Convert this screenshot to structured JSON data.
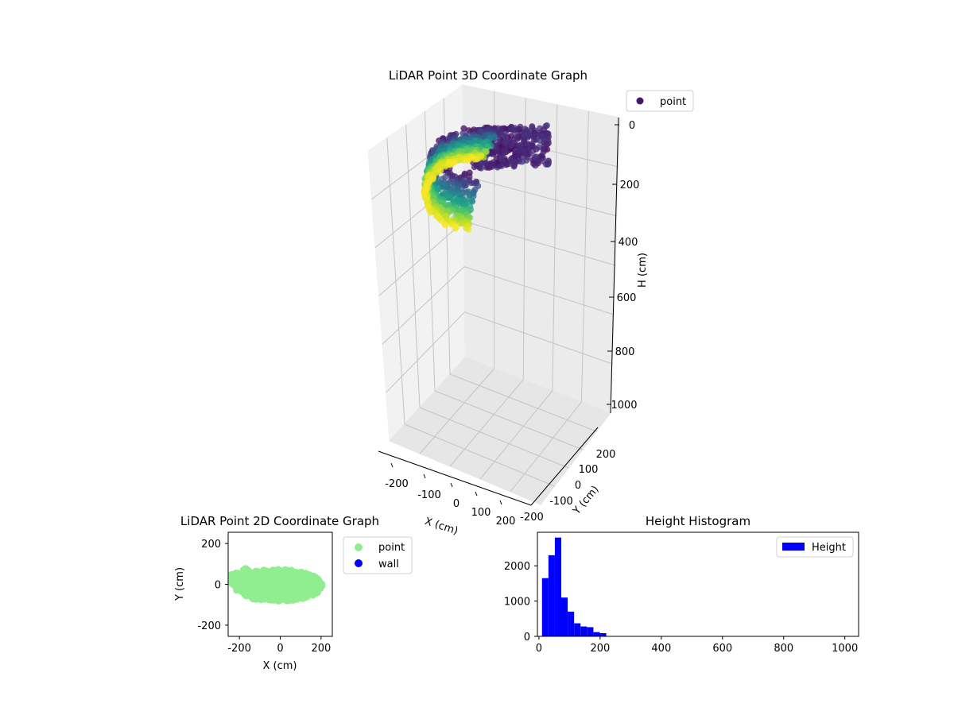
{
  "chart_data": [
    {
      "type": "scatter3d",
      "title": "LiDAR Point 3D Coordinate Graph",
      "xlabel": "X (cm)",
      "ylabel": "Y (cm)",
      "zlabel": "H (cm)",
      "x_ticks": [
        "-200",
        "-100",
        "0",
        "100",
        "200"
      ],
      "y_ticks": [
        "-200",
        "-100",
        "0",
        "100",
        "200"
      ],
      "z_ticks": [
        "0",
        "200",
        "400",
        "600",
        "800",
        "1000"
      ],
      "xlim": [
        -250,
        250
      ],
      "ylim": [
        -250,
        250
      ],
      "zlim": [
        0,
        1050
      ],
      "z_inverted": true,
      "colormap": "viridis",
      "legend": [
        {
          "label": "point",
          "color": "#46166b"
        }
      ],
      "legend_position": "upper-right-outside",
      "grid": true
    },
    {
      "type": "scatter",
      "title": "LiDAR Point 2D Coordinate Graph",
      "xlabel": "X (cm)",
      "ylabel": "Y (cm)",
      "x_ticks": [
        "-200",
        "0",
        "200"
      ],
      "y_ticks": [
        "200",
        "0",
        "-200"
      ],
      "xlim": [
        -255,
        255
      ],
      "ylim": [
        -255,
        255
      ],
      "grid": false,
      "series": [
        {
          "name": "point",
          "color": "#90ee90"
        },
        {
          "name": "wall",
          "color": "#0000ff"
        }
      ],
      "legend_position": "upper-right-outside"
    },
    {
      "type": "bar",
      "title": "Height Histogram",
      "x_ticks": [
        "0",
        "200",
        "400",
        "600",
        "800",
        "1000"
      ],
      "y_ticks": [
        "0",
        "1000",
        "2000"
      ],
      "xlim": [
        -5,
        1045
      ],
      "ylim": [
        0,
        2950
      ],
      "color": "#0000ff",
      "bin_width": 21,
      "bins_start": [
        10,
        31,
        52,
        73,
        94,
        115,
        136,
        157,
        178,
        199,
        220,
        241
      ],
      "values": [
        1650,
        2300,
        2800,
        1100,
        700,
        370,
        280,
        260,
        120,
        90,
        0,
        0
      ],
      "series": [
        {
          "name": "Height",
          "color": "#0000ff"
        }
      ],
      "legend_position": "upper-right",
      "grid": false
    }
  ]
}
